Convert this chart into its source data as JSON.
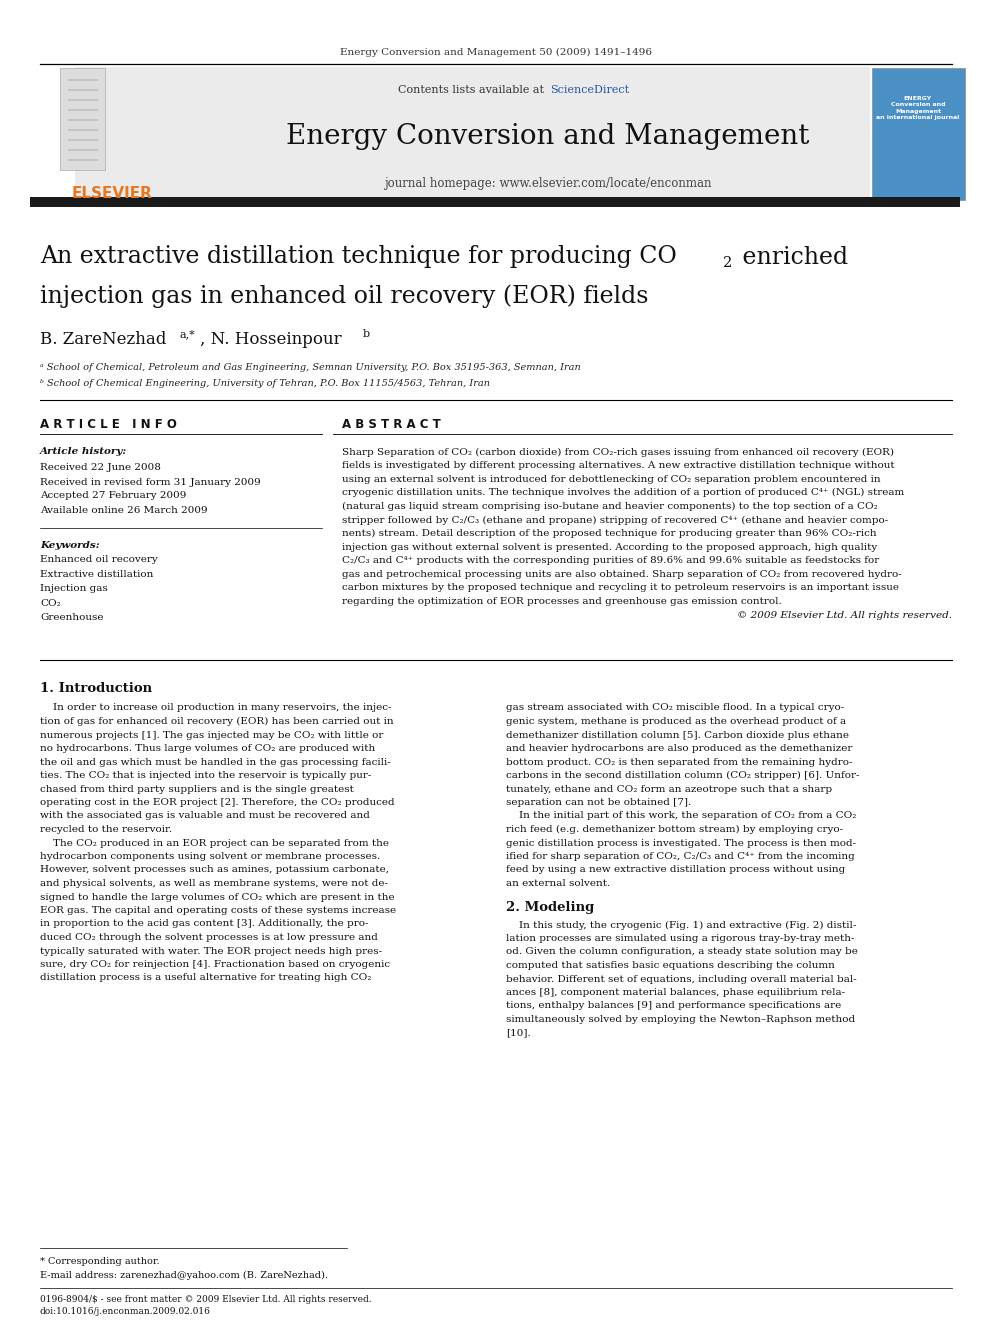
{
  "page_width": 9.92,
  "page_height": 13.23,
  "bg_color": "#ffffff",
  "top_journal_line": "Energy Conversion and Management 50 (2009) 1491–1496",
  "header_bg": "#ebebeb",
  "header_title": "Energy Conversion and Management",
  "header_subtitle": "journal homepage: www.elsevier.com/locate/enconman",
  "contents_line": "Contents lists available at ",
  "sciencedirect_text": "ScienceDirect",
  "sciencedirect_color": "#2255aa",
  "elsevier_color": "#e87722",
  "article_info_header": "A R T I C L E   I N F O",
  "abstract_header": "A B S T R A C T",
  "article_history_label": "Article history:",
  "received": "Received 22 June 2008",
  "received_revised": "Received in revised form 31 January 2009",
  "accepted": "Accepted 27 February 2009",
  "available": "Available online 26 March 2009",
  "keywords_label": "Keywords:",
  "keywords": [
    "Enhanced oil recovery",
    "Extractive distillation",
    "Injection gas",
    "CO₂",
    "Greenhouse"
  ],
  "copyright": "© 2009 Elsevier Ltd. All rights reserved.",
  "section1_title": "1. Introduction",
  "section2_title": "2. Modeling",
  "footnote_star": "* Corresponding author.",
  "footnote_email": "E-mail address: zarenezhad@yahoo.com (B. ZareNezhad).",
  "footnote_issn": "0196-8904/$ - see front matter © 2009 Elsevier Ltd. All rights reserved.",
  "footnote_doi": "doi:10.1016/j.enconman.2009.02.016",
  "thick_bar_color": "#1a1a1a",
  "affil_a": "ᵃ School of Chemical, Petroleum and Gas Engineering, Semnan University, P.O. Box 35195-363, Semnan, Iran",
  "affil_b": "ᵇ School of Chemical Engineering, University of Tehran, P.O. Box 11155/4563, Tehran, Iran",
  "abstract_lines": [
    "Sharp Separation of CO₂ (carbon dioxide) from CO₂-rich gases issuing from enhanced oil recovery (EOR)",
    "fields is investigated by different processing alternatives. A new extractive distillation technique without",
    "using an external solvent is introduced for debottlenecking of CO₂ separation problem encountered in",
    "cryogenic distillation units. The technique involves the addition of a portion of produced C⁴⁺ (NGL) stream",
    "(natural gas liquid stream comprising iso-butane and heavier components) to the top section of a CO₂",
    "stripper followed by C₂/C₃ (ethane and propane) stripping of recovered C⁴⁺ (ethane and heavier compo-",
    "nents) stream. Detail description of the proposed technique for producing greater than 96% CO₂-rich",
    "injection gas without external solvent is presented. According to the proposed approach, high quality",
    "C₂/C₃ and C⁴⁺ products with the corresponding purities of 89.6% and 99.6% suitable as feedstocks for",
    "gas and petrochemical processing units are also obtained. Sharp separation of CO₂ from recovered hydro-",
    "carbon mixtures by the proposed technique and recycling it to petroleum reservoirs is an important issue",
    "regarding the optimization of EOR processes and greenhouse gas emission control."
  ],
  "left_col_lines": [
    "    In order to increase oil production in many reservoirs, the injec-",
    "tion of gas for enhanced oil recovery (EOR) has been carried out in",
    "numerous projects [1]. The gas injected may be CO₂ with little or",
    "no hydrocarbons. Thus large volumes of CO₂ are produced with",
    "the oil and gas which must be handled in the gas processing facili-",
    "ties. The CO₂ that is injected into the reservoir is typically pur-",
    "chased from third party suppliers and is the single greatest",
    "operating cost in the EOR project [2]. Therefore, the CO₂ produced",
    "with the associated gas is valuable and must be recovered and",
    "recycled to the reservoir.",
    "    The CO₂ produced in an EOR project can be separated from the",
    "hydrocarbon components using solvent or membrane processes.",
    "However, solvent processes such as amines, potassium carbonate,",
    "and physical solvents, as well as membrane systems, were not de-",
    "signed to handle the large volumes of CO₂ which are present in the",
    "EOR gas. The capital and operating costs of these systems increase",
    "in proportion to the acid gas content [3]. Additionally, the pro-",
    "duced CO₂ through the solvent processes is at low pressure and",
    "typically saturated with water. The EOR project needs high pres-",
    "sure, dry CO₂ for reinjection [4]. Fractionation based on cryogenic",
    "distillation process is a useful alternative for treating high CO₂"
  ],
  "right_col_lines": [
    "gas stream associated with CO₂ miscible flood. In a typical cryo-",
    "genic system, methane is produced as the overhead product of a",
    "demethanizer distillation column [5]. Carbon dioxide plus ethane",
    "and heavier hydrocarbons are also produced as the demethanizer",
    "bottom product. CO₂ is then separated from the remaining hydro-",
    "carbons in the second distillation column (CO₂ stripper) [6]. Unfor-",
    "tunately, ethane and CO₂ form an azeotrope such that a sharp",
    "separation can not be obtained [7].",
    "    In the initial part of this work, the separation of CO₂ from a CO₂",
    "rich feed (e.g. demethanizer bottom stream) by employing cryo-",
    "genic distillation process is investigated. The process is then mod-",
    "ified for sharp separation of CO₂, C₂/C₃ and C⁴⁺ from the incoming",
    "feed by using a new extractive distillation process without using",
    "an external solvent."
  ],
  "section2_lines": [
    "    In this study, the cryogenic (Fig. 1) and extractive (Fig. 2) distil-",
    "lation processes are simulated using a rigorous tray-by-tray meth-",
    "od. Given the column configuration, a steady state solution may be",
    "computed that satisfies basic equations describing the column",
    "behavior. Different set of equations, including overall material bal-",
    "ances [8], component material balances, phase equilibrium rela-",
    "tions, enthalpy balances [9] and performance specifications are",
    "simultaneously solved by employing the Newton–Raphson method",
    "[10]."
  ]
}
